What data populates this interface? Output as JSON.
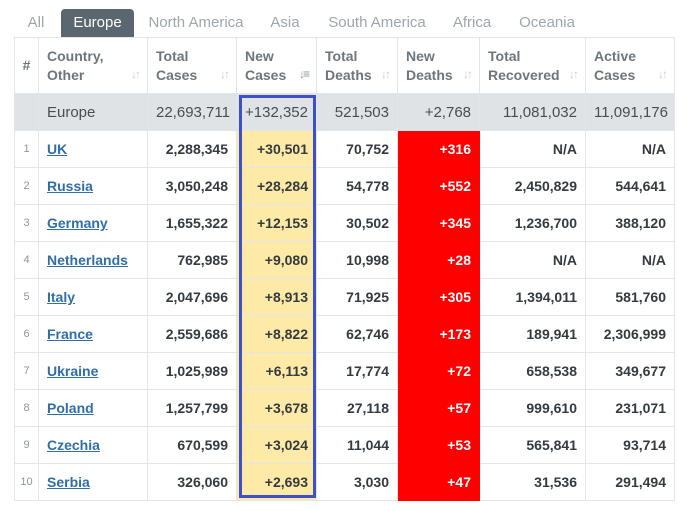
{
  "tabs": [
    {
      "label": "All",
      "active": false
    },
    {
      "label": "Europe",
      "active": true
    },
    {
      "label": "North America",
      "active": false
    },
    {
      "label": "Asia",
      "active": false
    },
    {
      "label": "South America",
      "active": false
    },
    {
      "label": "Africa",
      "active": false
    },
    {
      "label": "Oceania",
      "active": false
    }
  ],
  "table": {
    "headers": {
      "index": "#",
      "country_line1": "Country,",
      "country_line2": "Other",
      "total_cases_line1": "Total",
      "total_cases_line2": "Cases",
      "new_cases_line1": "New",
      "new_cases_line2": "Cases",
      "total_deaths_line1": "Total",
      "total_deaths_line2": "Deaths",
      "new_deaths_line1": "New",
      "new_deaths_line2": "Deaths",
      "total_recovered_line1": "Total",
      "total_recovered_line2": "Recovered",
      "active_cases_line1": "Active",
      "active_cases_line2": "Cases"
    },
    "summary": {
      "region": "Europe",
      "total_cases": "22,693,711",
      "new_cases": "+132,352",
      "total_deaths": "521,503",
      "new_deaths": "+2,768",
      "total_recovered": "11,081,032",
      "active_cases": "11,091,176"
    },
    "rows": [
      {
        "index": "1",
        "country": "UK",
        "total_cases": "2,288,345",
        "new_cases": "+30,501",
        "total_deaths": "70,752",
        "new_deaths": "+316",
        "total_recovered": "N/A",
        "active_cases": "N/A"
      },
      {
        "index": "2",
        "country": "Russia",
        "total_cases": "3,050,248",
        "new_cases": "+28,284",
        "total_deaths": "54,778",
        "new_deaths": "+552",
        "total_recovered": "2,450,829",
        "active_cases": "544,641"
      },
      {
        "index": "3",
        "country": "Germany",
        "total_cases": "1,655,322",
        "new_cases": "+12,153",
        "total_deaths": "30,502",
        "new_deaths": "+345",
        "total_recovered": "1,236,700",
        "active_cases": "388,120"
      },
      {
        "index": "4",
        "country": "Netherlands",
        "total_cases": "762,985",
        "new_cases": "+9,080",
        "total_deaths": "10,998",
        "new_deaths": "+28",
        "total_recovered": "N/A",
        "active_cases": "N/A"
      },
      {
        "index": "5",
        "country": "Italy",
        "total_cases": "2,047,696",
        "new_cases": "+8,913",
        "total_deaths": "71,925",
        "new_deaths": "+305",
        "total_recovered": "1,394,011",
        "active_cases": "581,760"
      },
      {
        "index": "6",
        "country": "France",
        "total_cases": "2,559,686",
        "new_cases": "+8,822",
        "total_deaths": "62,746",
        "new_deaths": "+173",
        "total_recovered": "189,941",
        "active_cases": "2,306,999"
      },
      {
        "index": "7",
        "country": "Ukraine",
        "total_cases": "1,025,989",
        "new_cases": "+6,113",
        "total_deaths": "17,774",
        "new_deaths": "+72",
        "total_recovered": "658,538",
        "active_cases": "349,677"
      },
      {
        "index": "8",
        "country": "Poland",
        "total_cases": "1,257,799",
        "new_cases": "+3,678",
        "total_deaths": "27,118",
        "new_deaths": "+57",
        "total_recovered": "999,610",
        "active_cases": "231,071"
      },
      {
        "index": "9",
        "country": "Czechia",
        "total_cases": "670,599",
        "new_cases": "+3,024",
        "total_deaths": "11,044",
        "new_deaths": "+53",
        "total_recovered": "565,841",
        "active_cases": "93,714"
      },
      {
        "index": "10",
        "country": "Serbia",
        "total_cases": "326,060",
        "new_cases": "+2,693",
        "total_deaths": "3,030",
        "new_deaths": "+47",
        "total_recovered": "31,536",
        "active_cases": "291,494"
      }
    ]
  },
  "icons": {
    "sort_default": "sort-icon",
    "sort_active": "sort-descending-icon"
  },
  "colors": {
    "active_tab": "#5b6770",
    "new_cases_bg": "#fdeaa7",
    "new_deaths_bg": "#ff0000",
    "summary_bg": "#dfe3e6",
    "link": "#2f6ea8",
    "highlight_border": "#3f4fc4"
  }
}
